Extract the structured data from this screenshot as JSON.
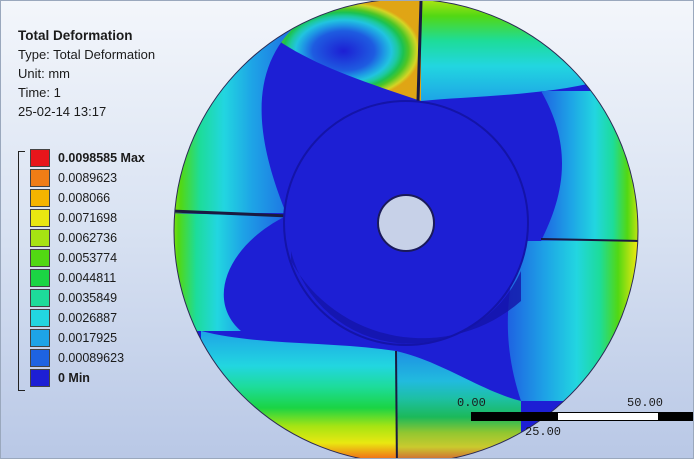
{
  "info": {
    "title": "Total Deformation",
    "type_line": "Type: Total Deformation",
    "unit_line": "Unit: mm",
    "time_line": "Time: 1",
    "date_line": "25-02-14 13:17"
  },
  "legend": {
    "entries": [
      {
        "label": "0.0098585 Max",
        "color": "#e8161b",
        "bold": true
      },
      {
        "label": "0.0089623",
        "color": "#f07d16",
        "bold": false
      },
      {
        "label": "0.008066",
        "color": "#f5b400",
        "bold": false
      },
      {
        "label": "0.0071698",
        "color": "#e9e811",
        "bold": false
      },
      {
        "label": "0.0062736",
        "color": "#a6e413",
        "bold": false
      },
      {
        "label": "0.0053774",
        "color": "#52d813",
        "bold": false
      },
      {
        "label": "0.0044811",
        "color": "#1bd444",
        "bold": false
      },
      {
        "label": "0.0035849",
        "color": "#1ddc9a",
        "bold": false
      },
      {
        "label": "0.0026887",
        "color": "#22d6e0",
        "bold": false
      },
      {
        "label": "0.0017925",
        "color": "#1ea4e6",
        "bold": false
      },
      {
        "label": "0.00089623",
        "color": "#1e63e2",
        "bold": false
      },
      {
        "label": "0 Min",
        "color": "#1d1fd4",
        "bold": true
      }
    ]
  },
  "scale_bar": {
    "left_label": "0.00",
    "mid_label": "25.00",
    "right_label": "50.00"
  },
  "colors": {
    "min_blue": "#1d1fd4",
    "dark_blue": "#1414a8",
    "background_top": "#f3f6fb",
    "background_bottom": "#b9c8e6"
  }
}
